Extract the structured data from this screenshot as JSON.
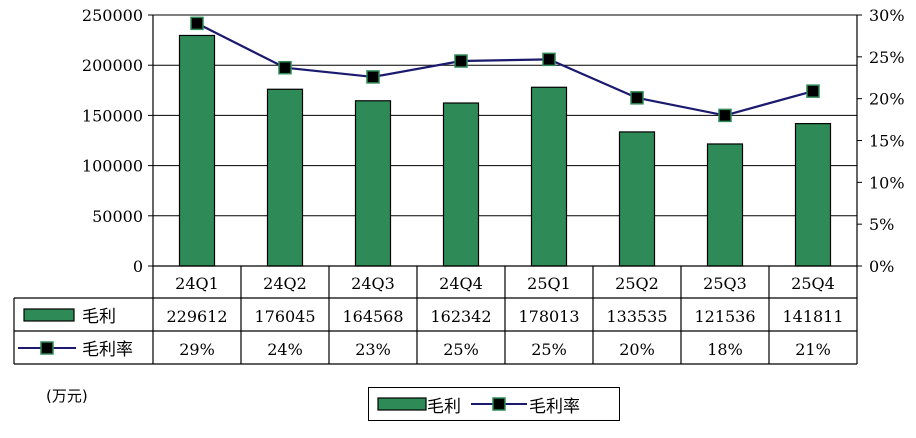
{
  "chart_data": {
    "type": "bar+line",
    "categories": [
      "24Q1",
      "24Q2",
      "24Q3",
      "24Q4",
      "25Q1",
      "25Q2",
      "25Q3",
      "25Q4"
    ],
    "series": [
      {
        "name": "毛利",
        "type": "bar",
        "axis": "left",
        "values": [
          229612,
          176045,
          164568,
          162342,
          178013,
          133535,
          121536,
          141811
        ],
        "labels": [
          "229612",
          "176045",
          "164568",
          "162342",
          "178013",
          "133535",
          "121536",
          "141811"
        ]
      },
      {
        "name": "毛利率",
        "type": "line",
        "axis": "right",
        "values": [
          29,
          23.7,
          22.6,
          24.5,
          24.7,
          20.1,
          18.0,
          20.9
        ],
        "labels": [
          "29%",
          "24%",
          "23%",
          "25%",
          "25%",
          "20%",
          "18%",
          "21%"
        ]
      }
    ],
    "left_axis": {
      "ylim": [
        0,
        250000
      ],
      "ticks": [
        "0",
        "50000",
        "100000",
        "150000",
        "200000",
        "250000"
      ]
    },
    "right_axis": {
      "ylim": [
        0,
        30
      ],
      "ticks": [
        "0%",
        "5%",
        "10%",
        "15%",
        "20%",
        "25%",
        "30%"
      ]
    },
    "unit_label": "(万元)",
    "grid": true,
    "legend_position": "bottom-center",
    "colors": {
      "bar_fill": "#2e8b57",
      "line": "#1a1a6e",
      "marker": "#000000",
      "marker_edge": "#2e8b57"
    }
  }
}
